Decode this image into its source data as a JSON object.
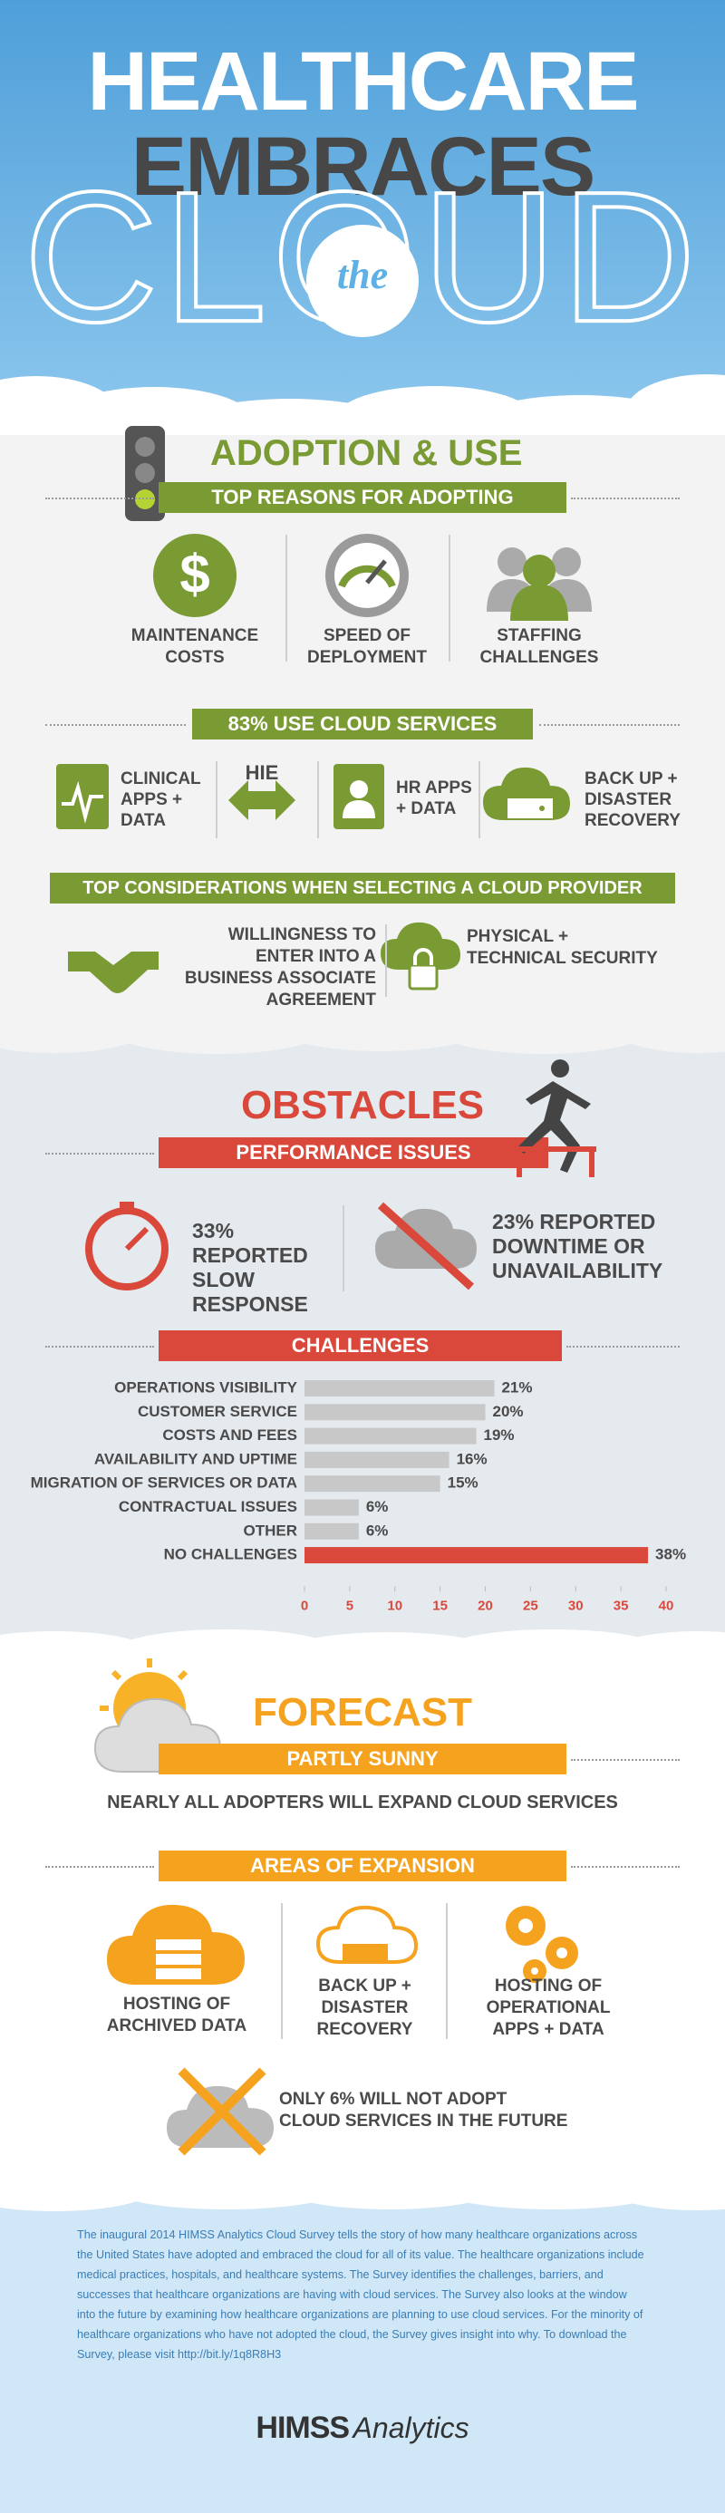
{
  "header": {
    "line1": "HEALTHCARE",
    "line2": "EMBRACES",
    "the": "the",
    "line3": "CLOUD"
  },
  "adoption": {
    "title": "ADOPTION & USE",
    "reasons_title": "TOP REASONS FOR ADOPTING",
    "reasons": [
      "MAINTENANCE COSTS",
      "SPEED OF DEPLOYMENT",
      "STAFFING CHALLENGES"
    ],
    "usage_title": "83% USE CLOUD SERVICES",
    "services": [
      "CLINICAL APPS + DATA",
      "HIE",
      "HR APPS + DATA",
      "BACK UP + DISASTER RECOVERY"
    ],
    "considerations_title": "TOP CONSIDERATIONS WHEN SELECTING A CLOUD PROVIDER",
    "considerations": [
      "WILLINGNESS TO ENTER INTO A BUSINESS ASSOCIATE AGREEMENT",
      "PHYSICAL + TECHNICAL SECURITY"
    ]
  },
  "obstacles": {
    "title": "OBSTACLES",
    "performance_title": "PERFORMANCE ISSUES",
    "issues": [
      "33% REPORTED SLOW RESPONSE",
      "23% REPORTED DOWNTIME OR UNAVAILABILITY"
    ],
    "challenges_title": "CHALLENGES"
  },
  "chart_data": {
    "type": "bar",
    "orientation": "horizontal",
    "categories": [
      "OPERATIONS VISIBILITY",
      "CUSTOMER SERVICE",
      "COSTS AND FEES",
      "AVAILABILITY AND UPTIME",
      "MIGRATION OF SERVICES OR DATA",
      "CONTRACTUAL ISSUES",
      "OTHER",
      "NO CHALLENGES"
    ],
    "values": [
      21,
      20,
      19,
      16,
      15,
      6,
      6,
      38
    ],
    "value_labels": [
      "21%",
      "20%",
      "19%",
      "16%",
      "15%",
      "6%",
      "6%",
      "38%"
    ],
    "colors": [
      "#c8c8c8",
      "#c8c8c8",
      "#c8c8c8",
      "#c8c8c8",
      "#c8c8c8",
      "#c8c8c8",
      "#c8c8c8",
      "#d9483b"
    ],
    "xlim": [
      0,
      40
    ],
    "xticks": [
      0,
      5,
      10,
      15,
      20,
      25,
      30,
      35,
      40
    ]
  },
  "forecast": {
    "title": "FORECAST",
    "outlook": "PARTLY SUNNY",
    "statement": "NEARLY ALL ADOPTERS WILL EXPAND CLOUD SERVICES",
    "areas_title": "AREAS OF EXPANSION",
    "areas": [
      "HOSTING OF ARCHIVED DATA",
      "BACK UP + DISASTER RECOVERY",
      "HOSTING OF OPERATIONAL APPS + DATA"
    ],
    "non_adopters": "ONLY 6% WILL NOT ADOPT CLOUD SERVICES IN THE FUTURE"
  },
  "footer": {
    "text": "The inaugural 2014 HIMSS Analytics Cloud Survey tells the story of how many healthcare organizations across the United States have adopted and embraced the cloud for all of its value. The healthcare organizations include medical practices, hospitals, and healthcare systems. The Survey identifies the challenges, barriers, and successes that healthcare organizations are having with cloud services. The Survey also looks at the window into the future by examining how healthcare organizations are planning to use cloud services. For the minority of healthcare organizations who have not adopted the cloud, the Survey gives insight into why. To download the Survey, please visit http://bit.ly/1q8R8H3",
    "logo_brand": "HIMSS",
    "logo_product": "Analytics"
  }
}
